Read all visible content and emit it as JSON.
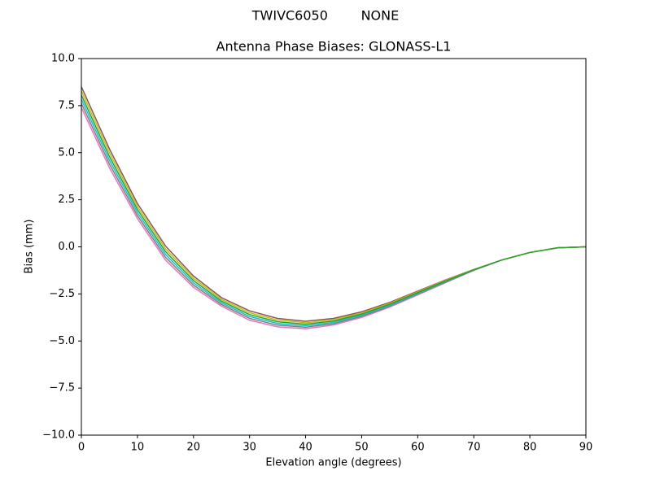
{
  "chart_data": {
    "type": "line",
    "suptitle": "TWIVC6050        NONE",
    "title": "Antenna Phase Biases: GLONASS-L1",
    "xlabel": "Elevation angle (degrees)",
    "ylabel": "Bias (mm)",
    "x": [
      0,
      5,
      10,
      15,
      20,
      25,
      30,
      35,
      40,
      45,
      50,
      55,
      60,
      65,
      70,
      75,
      80,
      85,
      90
    ],
    "xlim": [
      0,
      90
    ],
    "ylim": [
      -10,
      10
    ],
    "xticks": [
      0,
      10,
      20,
      30,
      40,
      50,
      60,
      70,
      80,
      90
    ],
    "yticks": [
      {
        "value": -10,
        "label": "−10.0"
      },
      {
        "value": -7.5,
        "label": "−7.5"
      },
      {
        "value": -5,
        "label": "−5.0"
      },
      {
        "value": -2.5,
        "label": "−2.5"
      },
      {
        "value": 0,
        "label": "0.0"
      },
      2.5,
      {
        "value": 5,
        "label": "5.0"
      },
      7.5,
      {
        "value": 10,
        "label": "10.0"
      }
    ],
    "series": [
      {
        "color": "#e377c2",
        "values": [
          7.4,
          4.2,
          1.5,
          -0.7,
          -2.15,
          -3.15,
          -3.9,
          -4.25,
          -4.35,
          -4.15,
          -3.75,
          -3.2,
          -2.55,
          -1.9,
          -1.25,
          -0.7,
          -0.3,
          -0.05,
          0
        ]
      },
      {
        "color": "#7f7f7f",
        "values": [
          7.62,
          4.4,
          1.66,
          -0.55,
          -2.03,
          -3.06,
          -3.8,
          -4.16,
          -4.27,
          -4.08,
          -3.69,
          -3.15,
          -2.51,
          -1.87,
          -1.24,
          -0.7,
          -0.3,
          -0.05,
          0
        ]
      },
      {
        "color": "#17becf",
        "values": [
          7.84,
          4.6,
          1.82,
          -0.4,
          -1.91,
          -2.97,
          -3.7,
          -4.07,
          -4.19,
          -4.01,
          -3.63,
          -3.1,
          -2.47,
          -1.84,
          -1.23,
          -0.7,
          -0.3,
          -0.05,
          0
        ]
      },
      {
        "color": "#8c564b",
        "values": [
          8.5,
          5.2,
          2.3,
          0.05,
          -1.55,
          -2.7,
          -3.4,
          -3.8,
          -3.95,
          -3.8,
          -3.45,
          -2.95,
          -2.35,
          -1.75,
          -1.2,
          -0.7,
          -0.3,
          -0.05,
          0
        ]
      },
      {
        "color": "#bcbd22",
        "values": [
          8.28,
          5.0,
          2.14,
          -0.1,
          -1.67,
          -2.79,
          -3.5,
          -3.89,
          -4.03,
          -3.87,
          -3.51,
          -3.0,
          -2.39,
          -1.78,
          -1.21,
          -0.7,
          -0.3,
          -0.05,
          0
        ]
      },
      {
        "color": "#2ca02c",
        "values": [
          8.06,
          4.8,
          1.98,
          -0.25,
          -1.79,
          -2.88,
          -3.6,
          -3.98,
          -4.11,
          -3.94,
          -3.57,
          -3.05,
          -2.43,
          -1.81,
          -1.22,
          -0.7,
          -0.3,
          -0.05,
          0
        ]
      }
    ]
  }
}
